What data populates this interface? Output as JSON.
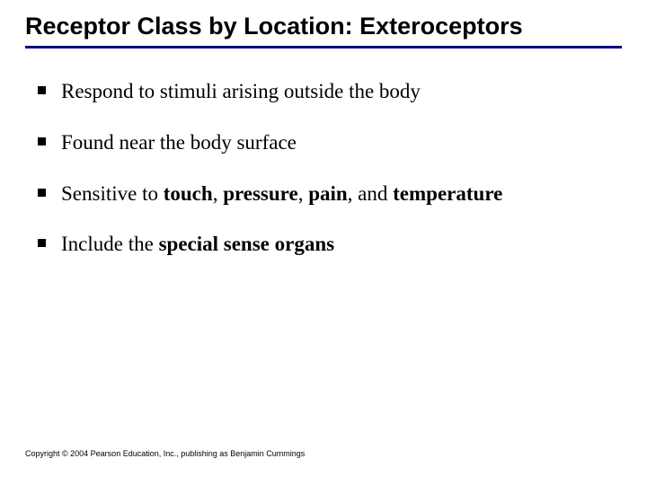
{
  "title": "Receptor Class by Location: Exteroceptors",
  "title_fontsize": 27,
  "title_font": "Arial, Helvetica, sans-serif",
  "title_underline_color": "#000080",
  "bullet_marker_color": "#000000",
  "body_font": "Times New Roman, Times, serif",
  "body_fontsize": 23,
  "background_color": "#ffffff",
  "bullets": [
    {
      "segments": [
        {
          "text": "Respond to stimuli arising outside the body",
          "bold": false
        }
      ]
    },
    {
      "segments": [
        {
          "text": "Found near the body surface",
          "bold": false
        }
      ]
    },
    {
      "segments": [
        {
          "text": "Sensitive to ",
          "bold": false
        },
        {
          "text": "touch",
          "bold": true
        },
        {
          "text": ", ",
          "bold": false
        },
        {
          "text": "pressure",
          "bold": true
        },
        {
          "text": ", ",
          "bold": false
        },
        {
          "text": "pain",
          "bold": true
        },
        {
          "text": ", and ",
          "bold": false
        },
        {
          "text": "temperature",
          "bold": true
        }
      ]
    },
    {
      "segments": [
        {
          "text": "Include the ",
          "bold": false
        },
        {
          "text": "special sense organs",
          "bold": true
        }
      ]
    }
  ],
  "footer": "Copyright © 2004 Pearson Education, Inc., publishing as Benjamin Cummings",
  "footer_fontsize": 9
}
